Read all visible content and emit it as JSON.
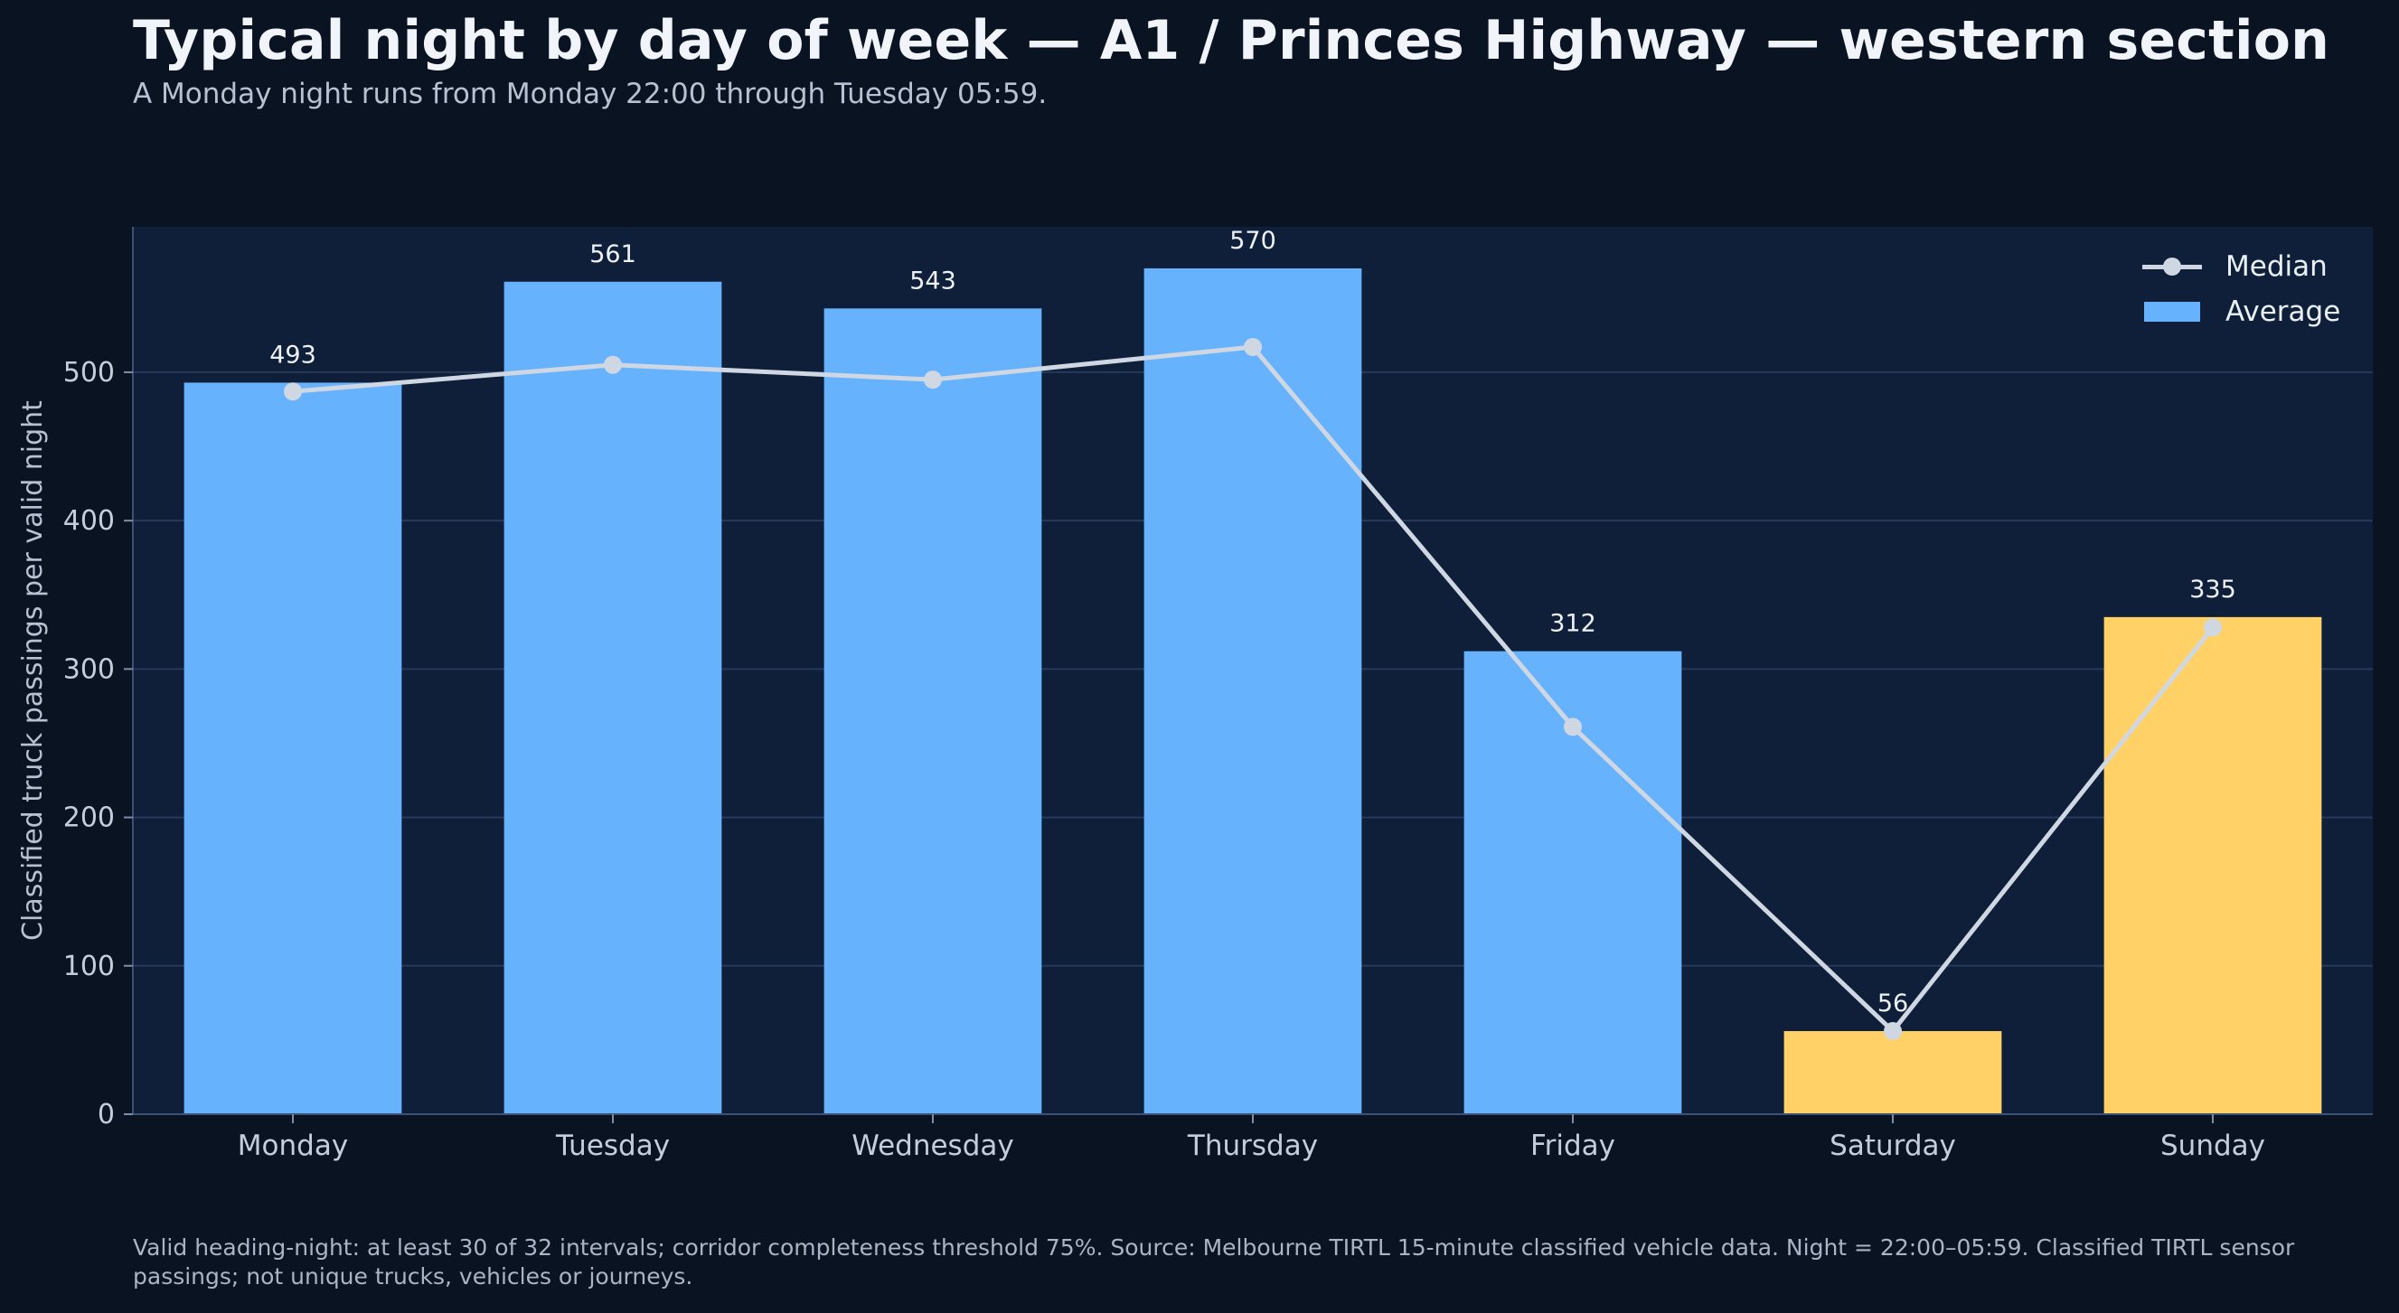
{
  "title": "Typical night by day of week — A1 / Princes Highway — western section",
  "subtitle": "A Monday night runs from Monday 22:00 through Tuesday 05:59.",
  "footnote": "Valid heading-night: at least 30 of 32 intervals; corridor completeness threshold 75%. Source: Melbourne TIRTL 15-minute classified vehicle data. Night = 22:00–05:59. Classified TIRTL sensor passings; not unique trucks, vehicles or journeys.",
  "colors": {
    "weekday_bar": "#66b2fd",
    "weekend_bar": "#ffd166",
    "median_line": "#cfd7e2",
    "plot_bg": "#0f1f3a",
    "page_bg": "#0a1322"
  },
  "chart_data": {
    "type": "bar",
    "categories": [
      "Monday",
      "Tuesday",
      "Wednesday",
      "Thursday",
      "Friday",
      "Saturday",
      "Sunday"
    ],
    "series": [
      {
        "name": "Average",
        "type": "bar",
        "values": [
          493,
          561,
          543,
          570,
          312,
          56,
          335
        ],
        "data_labels": [
          "493",
          "561",
          "543",
          "570",
          "312",
          "56",
          "335"
        ]
      },
      {
        "name": "Median",
        "type": "line",
        "values": [
          487,
          505,
          495,
          517,
          261,
          56,
          328
        ]
      }
    ],
    "weekend_highlight": [
      "Saturday",
      "Sunday"
    ],
    "ylabel": "Classified truck passings per valid night",
    "xlabel": "",
    "ylim": [
      0,
      598
    ],
    "yticks": [
      0,
      100,
      200,
      300,
      400,
      500
    ],
    "ytick_labels": [
      "0",
      "100",
      "200",
      "300",
      "400",
      "500"
    ],
    "grid": "horizontal",
    "legend": {
      "placement": "top-right",
      "entries": [
        "Median",
        "Average"
      ]
    }
  }
}
